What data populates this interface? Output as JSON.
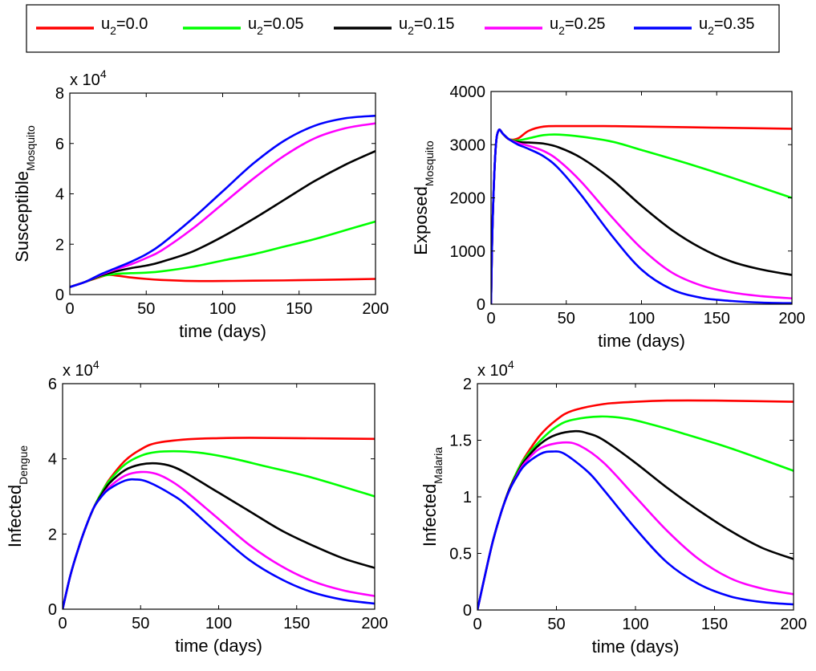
{
  "legend": [
    {
      "label": "u",
      "sub": "2",
      "rest": "=0.0",
      "color": "#ff0000"
    },
    {
      "label": "u",
      "sub": "2",
      "rest": "=0.05",
      "color": "#00ff00"
    },
    {
      "label": "u",
      "sub": "2",
      "rest": "=0.15",
      "color": "#000000"
    },
    {
      "label": "u",
      "sub": "2",
      "rest": "=0.25",
      "color": "#ff00ff"
    },
    {
      "label": "u",
      "sub": "2",
      "rest": "=0.35",
      "color": "#0000ff"
    }
  ],
  "chart_data": [
    {
      "type": "line",
      "xlabel": "time (days)",
      "ylabel_main": "Susceptible",
      "ylabel_sub": "Mosquito",
      "multiplier": "x 10",
      "multiplier_exp": "4",
      "xlim": [
        0,
        200
      ],
      "ylim": [
        0,
        8
      ],
      "xticks": [
        0,
        50,
        100,
        150,
        200
      ],
      "yticks": [
        0,
        2,
        4,
        6,
        8
      ],
      "grid": false,
      "series": [
        {
          "color": "#ff0000",
          "x": [
            0,
            10,
            20,
            25,
            30,
            40,
            50,
            60,
            80,
            100,
            120,
            150,
            180,
            200
          ],
          "y": [
            0.3,
            0.5,
            0.7,
            0.78,
            0.76,
            0.68,
            0.62,
            0.58,
            0.54,
            0.54,
            0.55,
            0.57,
            0.6,
            0.62
          ]
        },
        {
          "color": "#00ff00",
          "x": [
            0,
            10,
            20,
            30,
            40,
            50,
            60,
            80,
            100,
            120,
            140,
            160,
            180,
            200
          ],
          "y": [
            0.3,
            0.5,
            0.72,
            0.82,
            0.85,
            0.87,
            0.92,
            1.1,
            1.35,
            1.6,
            1.9,
            2.2,
            2.55,
            2.9
          ]
        },
        {
          "color": "#000000",
          "x": [
            0,
            10,
            20,
            30,
            40,
            50,
            60,
            80,
            100,
            120,
            140,
            160,
            180,
            200
          ],
          "y": [
            0.3,
            0.5,
            0.75,
            0.92,
            1.05,
            1.15,
            1.3,
            1.7,
            2.3,
            3.0,
            3.75,
            4.5,
            5.15,
            5.7
          ]
        },
        {
          "color": "#ff00ff",
          "x": [
            0,
            10,
            20,
            30,
            40,
            50,
            60,
            80,
            100,
            120,
            140,
            160,
            180,
            200
          ],
          "y": [
            0.3,
            0.5,
            0.78,
            1.0,
            1.2,
            1.45,
            1.75,
            2.6,
            3.6,
            4.6,
            5.5,
            6.2,
            6.6,
            6.8
          ]
        },
        {
          "color": "#0000ff",
          "x": [
            0,
            10,
            20,
            30,
            40,
            50,
            60,
            80,
            100,
            120,
            140,
            160,
            180,
            200
          ],
          "y": [
            0.3,
            0.5,
            0.8,
            1.05,
            1.3,
            1.6,
            2.0,
            3.0,
            4.1,
            5.2,
            6.1,
            6.7,
            7.0,
            7.1
          ]
        }
      ]
    },
    {
      "type": "line",
      "xlabel": "time (days)",
      "ylabel_main": "Exposed",
      "ylabel_sub": "Mosquito",
      "multiplier": "",
      "multiplier_exp": "",
      "xlim": [
        0,
        200
      ],
      "ylim": [
        0,
        4000
      ],
      "xticks": [
        0,
        50,
        100,
        150,
        200
      ],
      "yticks": [
        0,
        1000,
        2000,
        3000,
        4000
      ],
      "grid": false,
      "series": [
        {
          "color": "#ff0000",
          "x": [
            0,
            1,
            3,
            5,
            8,
            12,
            18,
            25,
            35,
            50,
            75,
            100,
            150,
            200
          ],
          "y": [
            0,
            1500,
            2900,
            3270,
            3200,
            3100,
            3120,
            3260,
            3340,
            3350,
            3350,
            3340,
            3320,
            3300
          ]
        },
        {
          "color": "#00ff00",
          "x": [
            0,
            1,
            3,
            5,
            8,
            12,
            18,
            25,
            35,
            45,
            60,
            80,
            100,
            130,
            160,
            200
          ],
          "y": [
            0,
            1500,
            2900,
            3270,
            3200,
            3100,
            3080,
            3120,
            3180,
            3190,
            3150,
            3060,
            2900,
            2650,
            2380,
            2000
          ]
        },
        {
          "color": "#000000",
          "x": [
            0,
            1,
            3,
            5,
            8,
            12,
            18,
            25,
            35,
            45,
            60,
            80,
            100,
            120,
            140,
            160,
            180,
            200
          ],
          "y": [
            0,
            1500,
            2900,
            3270,
            3200,
            3100,
            3050,
            3040,
            3020,
            2950,
            2750,
            2350,
            1850,
            1400,
            1050,
            800,
            650,
            550
          ]
        },
        {
          "color": "#ff00ff",
          "x": [
            0,
            1,
            3,
            5,
            8,
            12,
            18,
            25,
            35,
            45,
            60,
            80,
            100,
            120,
            140,
            160,
            180,
            200
          ],
          "y": [
            0,
            1500,
            2900,
            3270,
            3200,
            3100,
            3030,
            2980,
            2880,
            2700,
            2300,
            1650,
            1050,
            600,
            350,
            220,
            150,
            110
          ]
        },
        {
          "color": "#0000ff",
          "x": [
            0,
            1,
            3,
            5,
            8,
            12,
            18,
            25,
            35,
            45,
            60,
            80,
            100,
            120,
            140,
            160,
            180,
            200
          ],
          "y": [
            0,
            1500,
            2900,
            3270,
            3200,
            3100,
            3000,
            2920,
            2780,
            2550,
            2050,
            1300,
            650,
            280,
            120,
            60,
            30,
            20
          ]
        }
      ]
    },
    {
      "type": "line",
      "xlabel": "time (days)",
      "ylabel_main": "Infected",
      "ylabel_sub": "Dengue",
      "multiplier": "x 10",
      "multiplier_exp": "4",
      "xlim": [
        0,
        200
      ],
      "ylim": [
        0,
        6
      ],
      "xticks": [
        0,
        50,
        100,
        150,
        200
      ],
      "yticks": [
        0,
        2,
        4,
        6
      ],
      "grid": false,
      "series": [
        {
          "color": "#ff0000",
          "x": [
            0,
            5,
            10,
            15,
            20,
            25,
            30,
            40,
            50,
            60,
            80,
            100,
            120,
            150,
            200
          ],
          "y": [
            0,
            0.9,
            1.6,
            2.2,
            2.7,
            3.1,
            3.45,
            3.95,
            4.25,
            4.42,
            4.52,
            4.55,
            4.56,
            4.55,
            4.53
          ]
        },
        {
          "color": "#00ff00",
          "x": [
            0,
            5,
            10,
            15,
            20,
            25,
            30,
            40,
            50,
            60,
            75,
            90,
            110,
            130,
            160,
            200
          ],
          "y": [
            0,
            0.9,
            1.6,
            2.2,
            2.7,
            3.1,
            3.42,
            3.85,
            4.08,
            4.18,
            4.2,
            4.15,
            4.0,
            3.8,
            3.5,
            3.0
          ]
        },
        {
          "color": "#000000",
          "x": [
            0,
            5,
            10,
            15,
            20,
            25,
            30,
            40,
            50,
            60,
            70,
            80,
            100,
            120,
            140,
            160,
            180,
            200
          ],
          "y": [
            0,
            0.9,
            1.6,
            2.2,
            2.7,
            3.05,
            3.35,
            3.7,
            3.85,
            3.88,
            3.8,
            3.6,
            3.1,
            2.6,
            2.1,
            1.7,
            1.35,
            1.1
          ]
        },
        {
          "color": "#ff00ff",
          "x": [
            0,
            5,
            10,
            15,
            20,
            25,
            30,
            40,
            50,
            60,
            70,
            80,
            100,
            120,
            140,
            160,
            180,
            200
          ],
          "y": [
            0,
            0.9,
            1.6,
            2.2,
            2.7,
            3.0,
            3.25,
            3.55,
            3.65,
            3.6,
            3.4,
            3.1,
            2.4,
            1.7,
            1.15,
            0.75,
            0.5,
            0.35
          ]
        },
        {
          "color": "#0000ff",
          "x": [
            0,
            5,
            10,
            15,
            20,
            25,
            30,
            40,
            47,
            55,
            70,
            80,
            100,
            120,
            140,
            160,
            180,
            200
          ],
          "y": [
            0,
            0.9,
            1.6,
            2.2,
            2.7,
            3.0,
            3.2,
            3.42,
            3.45,
            3.38,
            3.05,
            2.75,
            2.0,
            1.3,
            0.8,
            0.45,
            0.25,
            0.15
          ]
        }
      ]
    },
    {
      "type": "line",
      "xlabel": "time (days)",
      "ylabel_main": "Infected",
      "ylabel_sub": "Malaria",
      "multiplier": "x 10",
      "multiplier_exp": "4",
      "xlim": [
        0,
        200
      ],
      "ylim": [
        0,
        2
      ],
      "xticks": [
        0,
        50,
        100,
        150,
        200
      ],
      "yticks": [
        0,
        0.5,
        1,
        1.5,
        2
      ],
      "ytick_labels": [
        "0",
        "0.5",
        "1",
        "1.5",
        "2"
      ],
      "grid": false,
      "series": [
        {
          "color": "#ff0000",
          "x": [
            0,
            5,
            10,
            15,
            20,
            25,
            30,
            40,
            50,
            60,
            80,
            100,
            120,
            150,
            200
          ],
          "y": [
            0,
            0.32,
            0.62,
            0.86,
            1.06,
            1.22,
            1.35,
            1.55,
            1.68,
            1.76,
            1.82,
            1.84,
            1.85,
            1.85,
            1.84
          ]
        },
        {
          "color": "#00ff00",
          "x": [
            0,
            5,
            10,
            15,
            20,
            25,
            30,
            40,
            50,
            60,
            78,
            95,
            110,
            130,
            160,
            200
          ],
          "y": [
            0,
            0.32,
            0.62,
            0.86,
            1.06,
            1.22,
            1.34,
            1.5,
            1.62,
            1.68,
            1.71,
            1.69,
            1.64,
            1.56,
            1.43,
            1.23
          ]
        },
        {
          "color": "#000000",
          "x": [
            0,
            5,
            10,
            15,
            20,
            25,
            30,
            40,
            50,
            62,
            70,
            80,
            100,
            120,
            140,
            160,
            180,
            200
          ],
          "y": [
            0,
            0.32,
            0.62,
            0.86,
            1.06,
            1.2,
            1.32,
            1.47,
            1.55,
            1.58,
            1.56,
            1.5,
            1.3,
            1.08,
            0.88,
            0.7,
            0.55,
            0.45
          ]
        },
        {
          "color": "#ff00ff",
          "x": [
            0,
            5,
            10,
            15,
            20,
            25,
            30,
            40,
            54,
            65,
            80,
            100,
            120,
            140,
            160,
            180,
            200
          ],
          "y": [
            0,
            0.32,
            0.62,
            0.86,
            1.05,
            1.19,
            1.3,
            1.43,
            1.48,
            1.45,
            1.3,
            1.0,
            0.7,
            0.45,
            0.28,
            0.19,
            0.14
          ]
        },
        {
          "color": "#0000ff",
          "x": [
            0,
            5,
            10,
            15,
            20,
            25,
            30,
            40,
            47,
            55,
            70,
            80,
            100,
            120,
            140,
            160,
            180,
            200
          ],
          "y": [
            0,
            0.32,
            0.62,
            0.86,
            1.05,
            1.18,
            1.28,
            1.38,
            1.4,
            1.38,
            1.22,
            1.06,
            0.72,
            0.42,
            0.23,
            0.12,
            0.07,
            0.05
          ]
        }
      ]
    }
  ]
}
